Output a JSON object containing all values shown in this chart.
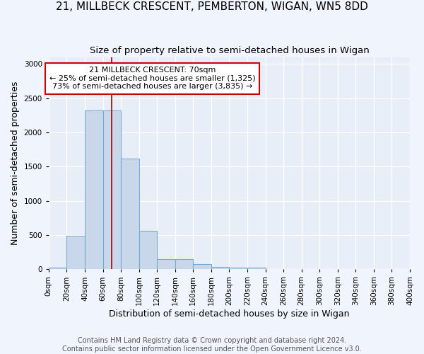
{
  "title": "21, MILLBECK CRESCENT, PEMBERTON, WIGAN, WN5 8DD",
  "subtitle": "Size of property relative to semi-detached houses in Wigan",
  "xlabel": "Distribution of semi-detached houses by size in Wigan",
  "ylabel": "Number of semi-detached properties",
  "footnote": "Contains HM Land Registry data © Crown copyright and database right 2024.\nContains public sector information licensed under the Open Government Licence v3.0.",
  "property_label": "21 MILLBECK CRESCENT: 70sqm",
  "smaller_pct": "25%",
  "smaller_count": 1325,
  "larger_pct": "73%",
  "larger_count": 3835,
  "bin_edges": [
    0,
    20,
    40,
    60,
    80,
    100,
    120,
    140,
    160,
    180,
    200,
    220,
    240,
    260,
    280,
    300,
    320,
    340,
    360,
    380,
    400
  ],
  "bar_heights": [
    25,
    490,
    2320,
    2320,
    1620,
    560,
    150,
    150,
    75,
    40,
    30,
    30,
    0,
    0,
    0,
    0,
    0,
    0,
    0,
    0
  ],
  "bar_color": "#c8d8ea",
  "bar_edge_color": "#7aaad0",
  "vline_color": "#aa0000",
  "vline_x": 70,
  "annotation_edge_color": "#cc0000",
  "ylim": [
    0,
    3100
  ],
  "xlim": [
    0,
    400
  ],
  "background_color": "#e8eef8",
  "grid_color": "#ffffff",
  "title_fontsize": 11,
  "subtitle_fontsize": 9.5,
  "axis_label_fontsize": 9,
  "tick_fontsize": 7.5,
  "annotation_fontsize": 8,
  "footnote_fontsize": 7
}
